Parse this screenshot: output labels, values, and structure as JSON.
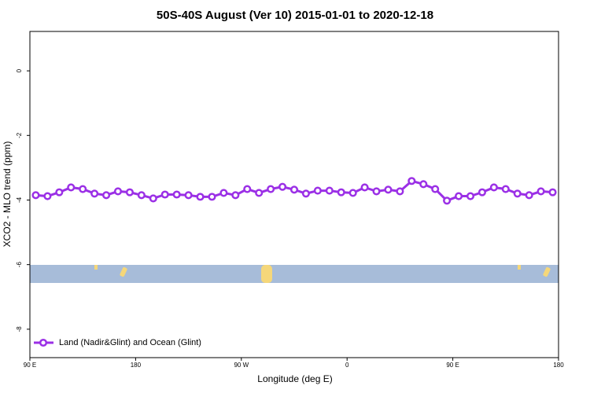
{
  "chart_data": {
    "type": "line",
    "title": "50S-40S August (Ver 10)   2015-01-01 to 2020-12-18",
    "x_label": "Longitude (deg E)",
    "y_label": "XCO2 - MLO trend (ppm)",
    "xlim": [
      90,
      540
    ],
    "xticks": [
      {
        "value": 90,
        "label": "90 E"
      },
      {
        "value": 180,
        "label": "180"
      },
      {
        "value": 270,
        "label": "90 W"
      },
      {
        "value": 360,
        "label": "0"
      },
      {
        "value": 450,
        "label": "90 E"
      },
      {
        "value": 540,
        "label": "180"
      }
    ],
    "ylim": [
      -8.88,
      1.22
    ],
    "yticks": [
      0,
      -2,
      -4,
      -6,
      -8
    ],
    "legend": "bottom-left",
    "x": [
      95,
      105,
      115,
      125,
      135,
      145,
      155,
      165,
      175,
      185,
      195,
      205,
      215,
      225,
      235,
      245,
      255,
      265,
      275,
      285,
      295,
      305,
      315,
      325,
      335,
      345,
      355,
      365,
      375,
      385,
      395,
      405,
      415,
      425,
      435,
      445,
      455,
      465,
      475,
      485,
      495,
      505,
      515,
      525,
      535
    ],
    "series": [
      {
        "name": "Land (Nadir&Glint) and Ocean (Glint)",
        "color": "#9b30e6",
        "values": [
          -3.85,
          -3.88,
          -3.76,
          -3.61,
          -3.66,
          -3.8,
          -3.85,
          -3.73,
          -3.76,
          -3.85,
          -3.95,
          -3.83,
          -3.83,
          -3.85,
          -3.9,
          -3.9,
          -3.78,
          -3.85,
          -3.66,
          -3.78,
          -3.66,
          -3.59,
          -3.68,
          -3.8,
          -3.71,
          -3.71,
          -3.76,
          -3.78,
          -3.61,
          -3.73,
          -3.68,
          -3.73,
          -3.41,
          -3.51,
          -3.66,
          -4.02,
          -3.88,
          -3.88,
          -3.76,
          -3.61,
          -3.66,
          -3.8,
          -3.85,
          -3.73,
          -3.76
        ]
      }
    ]
  }
}
